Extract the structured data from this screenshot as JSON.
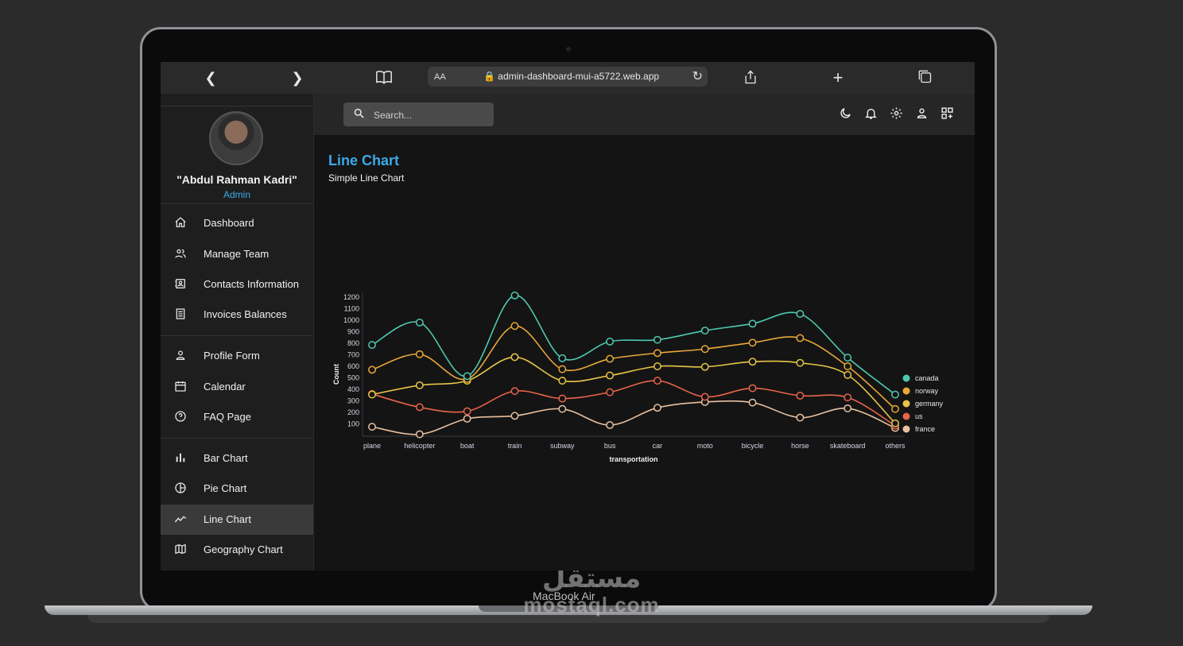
{
  "browser": {
    "url": "admin-dashboard-mui-a5722.web.app",
    "aa_label": "AA"
  },
  "device": {
    "label": "MacBook Air"
  },
  "watermark": {
    "arabic": "مستقل",
    "latin": "mostaql.com"
  },
  "user": {
    "name": "\"Abdul Rahman Kadri\"",
    "role": "Admin"
  },
  "sidebar": {
    "items": [
      {
        "label": "Dashboard",
        "icon": "home-icon"
      },
      {
        "label": "Manage Team",
        "icon": "people-icon"
      },
      {
        "label": "Contacts Information",
        "icon": "contacts-icon"
      },
      {
        "label": "Invoices Balances",
        "icon": "receipt-icon"
      },
      {
        "label": "Profile Form",
        "icon": "person-icon"
      },
      {
        "label": "Calendar",
        "icon": "calendar-icon"
      },
      {
        "label": "FAQ Page",
        "icon": "help-icon"
      },
      {
        "label": "Bar Chart",
        "icon": "bar-chart-icon"
      },
      {
        "label": "Pie Chart",
        "icon": "pie-chart-icon"
      },
      {
        "label": "Line Chart",
        "icon": "line-chart-icon"
      },
      {
        "label": "Geography Chart",
        "icon": "map-icon"
      }
    ],
    "active_index": 9
  },
  "search": {
    "placeholder": "Search..."
  },
  "page": {
    "title": "Line Chart",
    "subtitle": "Simple Line Chart"
  },
  "colors": {
    "accent": "#3da9e8",
    "canada": "#4ec9b0",
    "norway": "#e8a838",
    "germany": "#e8c547",
    "us": "#e8644a",
    "france": "#e8c1a0"
  },
  "chart_data": {
    "type": "line",
    "xlabel": "transportation",
    "ylabel": "Count",
    "categories": [
      "plane",
      "helicopter",
      "boat",
      "train",
      "subway",
      "bus",
      "car",
      "moto",
      "bicycle",
      "horse",
      "skateboard",
      "others"
    ],
    "yticks": [
      100,
      200,
      300,
      400,
      500,
      600,
      700,
      800,
      900,
      1000,
      1100,
      1200
    ],
    "ylim": [
      0,
      1200
    ],
    "legend_position": "bottom-right",
    "series": [
      {
        "name": "canada",
        "color": "#4ec9b0",
        "values": [
          785,
          980,
          515,
          1215,
          670,
          815,
          830,
          910,
          970,
          1055,
          675,
          355
        ]
      },
      {
        "name": "norway",
        "color": "#e8a838",
        "values": [
          570,
          705,
          490,
          950,
          575,
          665,
          715,
          750,
          805,
          845,
          600,
          230
        ]
      },
      {
        "name": "germany",
        "color": "#e8c547",
        "values": [
          355,
          435,
          475,
          680,
          475,
          520,
          600,
          595,
          640,
          630,
          525,
          105
        ]
      },
      {
        "name": "us",
        "color": "#e8644a",
        "values": [
          360,
          245,
          210,
          385,
          320,
          375,
          475,
          335,
          410,
          345,
          330,
          85
        ]
      },
      {
        "name": "france",
        "color": "#e8c1a0",
        "values": [
          75,
          10,
          145,
          170,
          230,
          90,
          240,
          290,
          285,
          155,
          235,
          65
        ]
      }
    ]
  }
}
